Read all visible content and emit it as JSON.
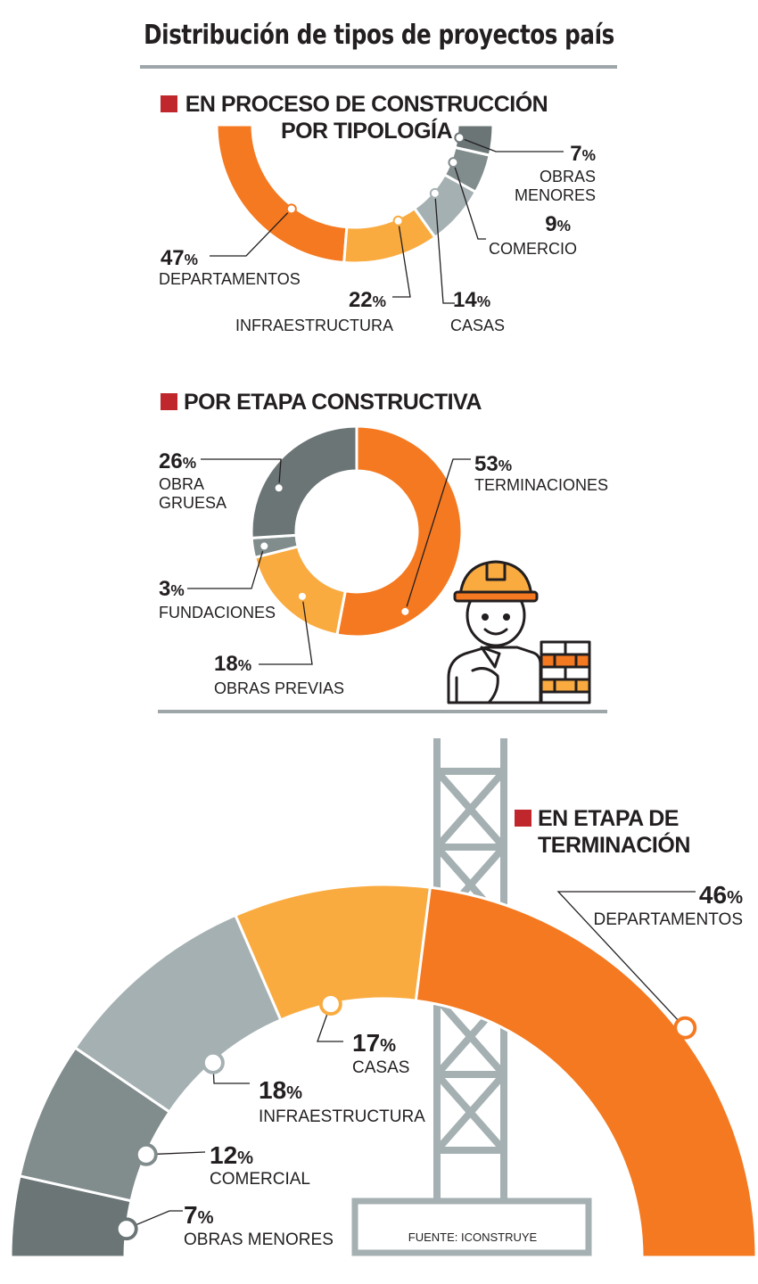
{
  "header": {
    "title": "Distribución de tipos de proyectos país"
  },
  "colors": {
    "orange": "#f47920",
    "light_orange": "#f9ab40",
    "light_gray": "#a5b0b2",
    "mid_gray": "#818c8d",
    "dark_gray": "#6b7576",
    "accent_red": "#c0272d",
    "text": "#231f20"
  },
  "icons": {
    "worker": "construction-worker-icon",
    "tower": "crane-tower-icon"
  },
  "chart_data": [
    {
      "type": "pie",
      "style": "half-donut",
      "title": "EN PROCESO DE CONSTRUCCIÓN POR TIPOLOGÍA",
      "slices": [
        {
          "label": "DEPARTAMENTOS",
          "value": 47,
          "display": "47",
          "color": "#f47920"
        },
        {
          "label": "INFRAESTRUCTURA",
          "value": 22,
          "display": "22",
          "color": "#f9ab40"
        },
        {
          "label": "CASAS",
          "value": 14,
          "display": "14",
          "color": "#a5b0b2"
        },
        {
          "label": "COMERCIO",
          "value": 9,
          "display": "9",
          "color": "#818c8d"
        },
        {
          "label": "OBRAS MENORES",
          "value": 7,
          "display": "7",
          "color": "#6b7576"
        }
      ]
    },
    {
      "type": "pie",
      "style": "donut",
      "title": "POR ETAPA CONSTRUCTIVA",
      "slices": [
        {
          "label": "TERMINACIONES",
          "value": 53,
          "display": "53",
          "color": "#f47920"
        },
        {
          "label": "OBRAS PREVIAS",
          "value": 18,
          "display": "18",
          "color": "#f9ab40"
        },
        {
          "label": "FUNDACIONES",
          "value": 3,
          "display": "3",
          "color": "#818c8d"
        },
        {
          "label": "OBRA GRUESA",
          "value": 26,
          "display": "26",
          "color": "#6b7576"
        }
      ]
    },
    {
      "type": "pie",
      "style": "half-donut",
      "title": "EN ETAPA DE TERMINACIÓN",
      "slices": [
        {
          "label": "OBRAS MENORES",
          "value": 7,
          "display": "7",
          "color": "#6b7576"
        },
        {
          "label": "COMERCIAL",
          "value": 12,
          "display": "12",
          "color": "#818c8d"
        },
        {
          "label": "INFRAESTRUCTURA",
          "value": 18,
          "display": "18",
          "color": "#a5b0b2"
        },
        {
          "label": "CASAS",
          "value": 17,
          "display": "17",
          "color": "#f9ab40"
        },
        {
          "label": "DEPARTAMENTOS",
          "value": 46,
          "display": "46",
          "color": "#f47920"
        }
      ]
    }
  ],
  "percent_symbol": "%",
  "source": "FUENTE: ICONSTRUYE"
}
